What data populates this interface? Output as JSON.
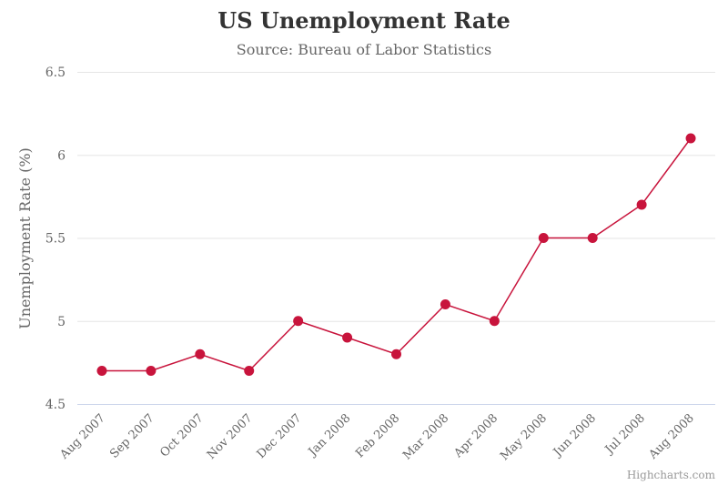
{
  "chart_data": {
    "type": "line",
    "title": "US Unemployment Rate",
    "subtitle": "Source: Bureau of Labor Statistics",
    "ylabel": "Unemployment Rate (%)",
    "xlabel": "",
    "ylim": [
      4.5,
      6.5
    ],
    "yticks": [
      "4.5",
      "5",
      "5.5",
      "6",
      "6.5"
    ],
    "grid": true,
    "categories": [
      "Aug 2007",
      "Sep 2007",
      "Oct 2007",
      "Nov 2007",
      "Dec 2007",
      "Jan 2008",
      "Feb 2008",
      "Mar 2008",
      "Apr 2008",
      "May 2008",
      "Jun 2008",
      "Jul 2008",
      "Aug 2008"
    ],
    "series": [
      {
        "values": [
          4.7,
          4.7,
          4.8,
          4.7,
          5.0,
          4.9,
          4.8,
          5.1,
          5.0,
          5.5,
          5.5,
          5.7,
          6.1
        ],
        "color": "#c8143c"
      }
    ]
  },
  "credits": "Highcharts.com"
}
